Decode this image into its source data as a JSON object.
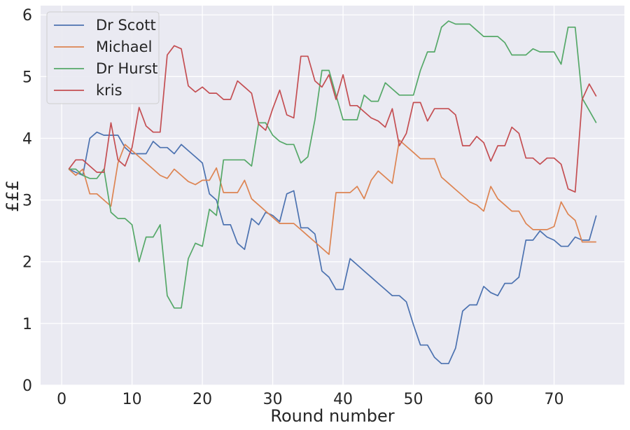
{
  "chart_data": {
    "type": "line",
    "title": "",
    "xlabel": "Round number",
    "ylabel": "£££",
    "xlim": [
      -3,
      80
    ],
    "ylim": [
      0,
      6.15
    ],
    "xticks": [
      0,
      10,
      20,
      30,
      40,
      50,
      60,
      70
    ],
    "yticks": [
      0,
      1,
      2,
      3,
      4,
      5,
      6
    ],
    "grid": true,
    "legend_position": "top-left",
    "x": [
      1,
      2,
      3,
      4,
      5,
      6,
      7,
      8,
      9,
      10,
      11,
      12,
      13,
      14,
      15,
      16,
      17,
      18,
      19,
      20,
      21,
      22,
      23,
      24,
      25,
      26,
      27,
      28,
      29,
      30,
      31,
      32,
      33,
      34,
      35,
      36,
      37,
      38,
      39,
      40,
      41,
      42,
      43,
      44,
      45,
      46,
      47,
      48,
      49,
      50,
      51,
      52,
      53,
      54,
      55,
      56,
      57,
      58,
      59,
      60,
      61,
      62,
      63,
      64,
      65,
      66,
      67,
      68,
      69,
      70,
      71,
      72,
      73,
      74,
      75,
      76
    ],
    "series": [
      {
        "name": "Dr Scott",
        "color": "#4c72b0",
        "values": [
          3.5,
          3.45,
          3.4,
          4.0,
          4.1,
          4.05,
          4.05,
          4.05,
          3.85,
          3.75,
          3.75,
          3.75,
          3.95,
          3.85,
          3.85,
          3.75,
          3.9,
          3.8,
          3.7,
          3.6,
          3.1,
          3.0,
          2.6,
          2.6,
          2.3,
          2.2,
          2.7,
          2.6,
          2.8,
          2.75,
          2.65,
          3.1,
          3.15,
          2.55,
          2.55,
          2.45,
          1.85,
          1.75,
          1.55,
          1.55,
          2.05,
          1.95,
          1.85,
          1.75,
          1.65,
          1.55,
          1.45,
          1.45,
          1.35,
          0.98,
          0.65,
          0.65,
          0.45,
          0.35,
          0.35,
          0.6,
          1.2,
          1.3,
          1.3,
          1.6,
          1.5,
          1.45,
          1.65,
          1.65,
          1.75,
          2.35,
          2.35,
          2.5,
          2.4,
          2.35,
          2.25,
          2.25,
          2.4,
          2.35,
          2.35,
          2.75
        ]
      },
      {
        "name": "Michael",
        "color": "#dd8452",
        "values": [
          3.5,
          3.4,
          3.5,
          3.1,
          3.1,
          3.0,
          2.9,
          3.6,
          3.9,
          3.8,
          3.7,
          3.6,
          3.5,
          3.4,
          3.35,
          3.5,
          3.4,
          3.3,
          3.25,
          3.32,
          3.32,
          3.52,
          3.12,
          3.12,
          3.12,
          3.32,
          3.02,
          2.92,
          2.82,
          2.72,
          2.62,
          2.62,
          2.62,
          2.52,
          2.42,
          2.32,
          2.22,
          2.12,
          3.12,
          3.12,
          3.12,
          3.22,
          3.02,
          3.32,
          3.47,
          3.37,
          3.27,
          3.97,
          3.87,
          3.77,
          3.67,
          3.67,
          3.67,
          3.37,
          3.27,
          3.17,
          3.07,
          2.97,
          2.92,
          2.82,
          3.22,
          3.02,
          2.92,
          2.82,
          2.82,
          2.62,
          2.52,
          2.52,
          2.52,
          2.57,
          2.97,
          2.77,
          2.67,
          2.32,
          2.32,
          2.32
        ]
      },
      {
        "name": "Dr Hurst",
        "color": "#55a868",
        "values": [
          3.5,
          3.5,
          3.4,
          3.35,
          3.35,
          3.5,
          2.8,
          2.7,
          2.7,
          2.6,
          2.0,
          2.4,
          2.4,
          2.6,
          1.45,
          1.25,
          1.25,
          2.05,
          2.3,
          2.25,
          2.85,
          2.75,
          3.65,
          3.65,
          3.65,
          3.65,
          3.55,
          4.25,
          4.25,
          4.05,
          3.95,
          3.9,
          3.9,
          3.6,
          3.7,
          4.3,
          5.1,
          5.1,
          4.7,
          4.3,
          4.3,
          4.3,
          4.7,
          4.6,
          4.6,
          4.9,
          4.8,
          4.7,
          4.7,
          4.7,
          5.1,
          5.4,
          5.4,
          5.8,
          5.9,
          5.85,
          5.85,
          5.85,
          5.75,
          5.65,
          5.65,
          5.65,
          5.55,
          5.35,
          5.35,
          5.35,
          5.45,
          5.4,
          5.4,
          5.4,
          5.2,
          5.8,
          5.8,
          4.65,
          4.45,
          4.25
        ]
      },
      {
        "name": "kris",
        "color": "#c44e52",
        "values": [
          3.5,
          3.65,
          3.65,
          3.55,
          3.45,
          3.45,
          4.25,
          3.65,
          3.55,
          3.85,
          4.5,
          4.2,
          4.1,
          4.1,
          5.35,
          5.5,
          5.45,
          4.85,
          4.75,
          4.83,
          4.73,
          4.73,
          4.63,
          4.63,
          4.93,
          4.83,
          4.73,
          4.23,
          4.13,
          4.48,
          4.78,
          4.38,
          4.33,
          5.33,
          5.33,
          4.93,
          4.83,
          5.03,
          4.63,
          5.03,
          4.53,
          4.53,
          4.43,
          4.33,
          4.28,
          4.18,
          4.48,
          3.88,
          4.08,
          4.58,
          4.58,
          4.28,
          4.48,
          4.48,
          4.48,
          4.38,
          3.88,
          3.88,
          4.03,
          3.93,
          3.63,
          3.88,
          3.88,
          4.18,
          4.08,
          3.68,
          3.68,
          3.58,
          3.68,
          3.68,
          3.58,
          3.18,
          3.13,
          4.63,
          4.88,
          4.68
        ]
      }
    ]
  }
}
